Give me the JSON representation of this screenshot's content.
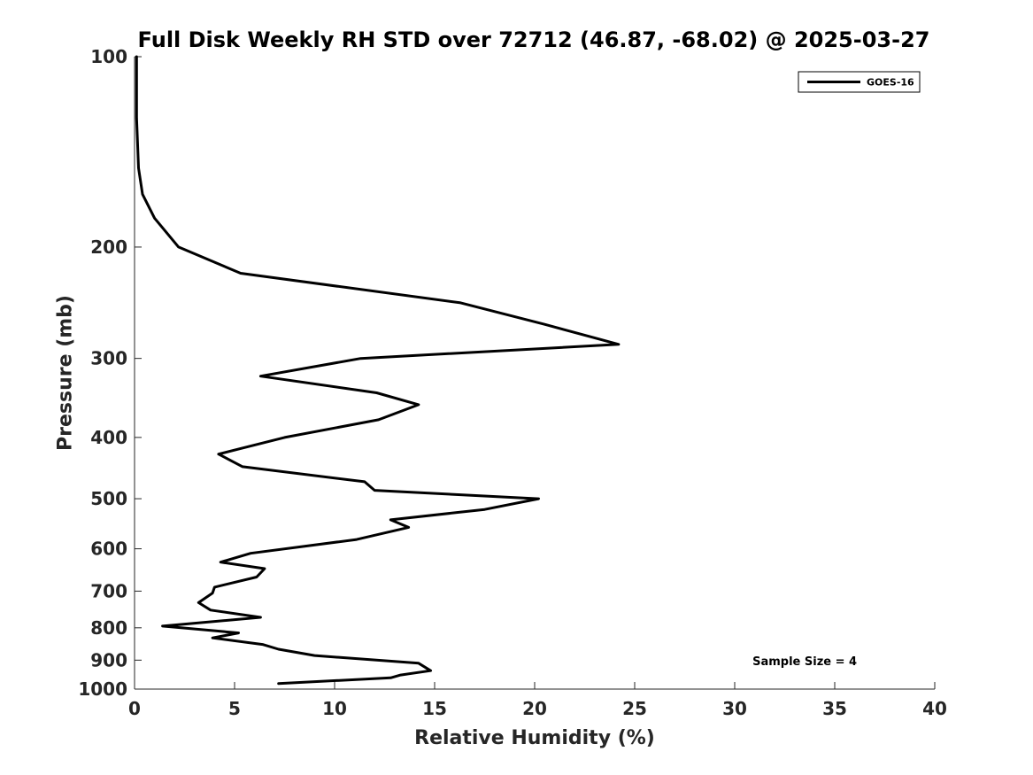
{
  "chart_data": {
    "type": "line",
    "title": "Full Disk Weekly RH STD over 72712 (46.87, -68.02) @ 2025-03-27",
    "xlabel": "Relative Humidity (%)",
    "ylabel": "Pressure (mb)",
    "xlim": [
      0,
      40
    ],
    "ylim": [
      100,
      1000
    ],
    "y_scale": "log",
    "y_direction": "reversed",
    "x_ticks": [
      "0",
      "5",
      "10",
      "15",
      "20",
      "25",
      "30",
      "35",
      "40"
    ],
    "y_ticks": [
      "100",
      "200",
      "300",
      "400",
      "500",
      "600",
      "700",
      "800",
      "900",
      "1000"
    ],
    "grid": false,
    "legend_position": "top-right",
    "annotation": "Sample Size = 4",
    "line_color": "#000000",
    "series": [
      {
        "name": "GOES-16",
        "x": [
          0.1,
          0.1,
          0.2,
          0.4,
          1.0,
          2.2,
          5.3,
          16.3,
          20.5,
          24.2,
          11.3,
          6.3,
          12.1,
          14.2,
          12.2,
          7.5,
          4.2,
          5.4,
          11.5,
          12.0,
          20.2,
          17.5,
          12.8,
          13.7,
          11.1,
          5.8,
          4.3,
          6.5,
          6.1,
          4.0,
          3.9,
          3.2,
          3.8,
          6.3,
          1.4,
          5.2,
          3.9,
          6.4,
          7.2,
          9.0,
          14.2,
          14.8,
          13.3,
          12.8,
          7.2
        ],
        "y": [
          100,
          125,
          150,
          165,
          180,
          200,
          220,
          245,
          265,
          285,
          300,
          320,
          340,
          355,
          375,
          400,
          425,
          445,
          470,
          485,
          500,
          520,
          540,
          555,
          580,
          610,
          630,
          645,
          665,
          690,
          705,
          730,
          750,
          770,
          795,
          815,
          830,
          850,
          865,
          885,
          910,
          935,
          950,
          960,
          980
        ]
      }
    ]
  }
}
